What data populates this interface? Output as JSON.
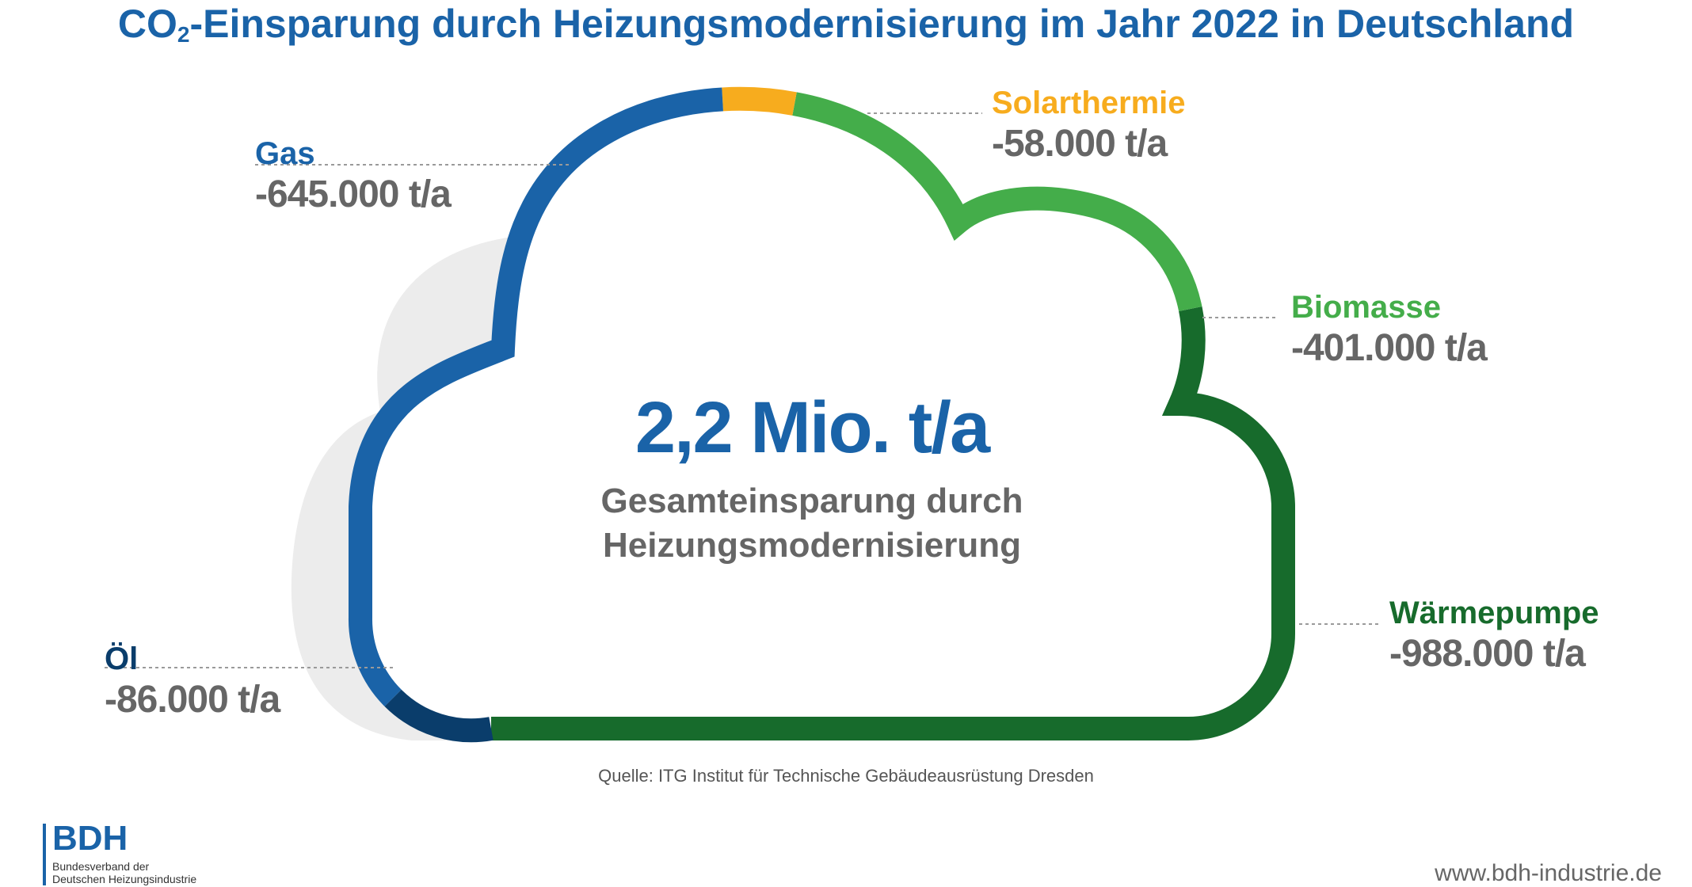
{
  "chart_data": {
    "type": "donut",
    "title_main": "CO",
    "title_sub": "2",
    "title_rest": "-Einsparung durch Heizungsmodernisierung im Jahr 2022 in Deutschland",
    "unit": "t/a",
    "total_label": "2,2 Mio. t/a",
    "total_subtitle_line1": "Gesamteinsparung durch",
    "total_subtitle_line2": "Heizungsmodernisierung",
    "series": [
      {
        "name": "Öl",
        "value": -86000,
        "display": "-86.000 t/a",
        "color": "#0a3d6b"
      },
      {
        "name": "Gas",
        "value": -645000,
        "display": "-645.000 t/a",
        "color": "#1a63a8"
      },
      {
        "name": "Solarthermie",
        "value": -58000,
        "display": "-58.000 t/a",
        "color": "#f7ac1e"
      },
      {
        "name": "Biomasse",
        "value": -401000,
        "display": "-401.000 t/a",
        "color": "#44ad4a"
      },
      {
        "name": "Wärmepumpe",
        "value": -988000,
        "display": "-988.000 t/a",
        "color": "#176b2c"
      }
    ]
  },
  "source": "Quelle: ITG Institut für Technische Gebäudeausrüstung Dresden",
  "logo": {
    "name": "BDH",
    "line1": "Bundesverband der",
    "line2": "Deutschen Heizungsindustrie"
  },
  "url": "www.bdh-industrie.de"
}
